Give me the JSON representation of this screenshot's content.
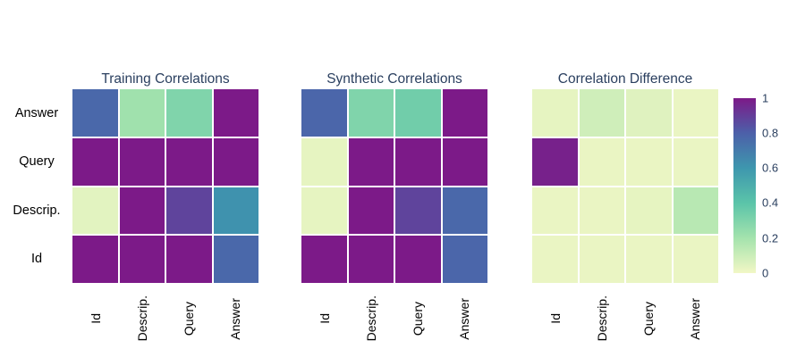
{
  "styles": {
    "background": "#ffffff",
    "title_color": "#2a3f5f",
    "axis_label_color": "#000000",
    "tick_label_color": "#2a3f5f",
    "cell_gap_color": "#ffffff"
  },
  "colormap": {
    "stops": [
      [
        0,
        "#f2f7c5"
      ],
      [
        0.2,
        "#a4e3ad"
      ],
      [
        0.4,
        "#5bc4a9"
      ],
      [
        0.6,
        "#3e97ae"
      ],
      [
        0.8,
        "#4c60a9"
      ],
      [
        1,
        "#7c1a88"
      ]
    ]
  },
  "colorbar": {
    "min": 0,
    "max": 1,
    "tick_labels": [
      "1",
      "0.8",
      "0.6",
      "0.4",
      "0.2",
      "0"
    ]
  },
  "chart_data": [
    {
      "type": "heatmap",
      "title": "Training Correlations",
      "x_categories": [
        "Id",
        "Descrip.",
        "Query",
        "Answer"
      ],
      "y_categories": [
        "Answer",
        "Query",
        "Descrip.",
        "Id"
      ],
      "values": [
        [
          0.77,
          0.21,
          0.3,
          1.0
        ],
        [
          1.0,
          1.0,
          1.0,
          1.0
        ],
        [
          0.04,
          1.0,
          0.88,
          0.62
        ],
        [
          1.0,
          1.0,
          1.0,
          0.77
        ]
      ],
      "zmin": 0,
      "zmax": 1,
      "show_y_labels": true
    },
    {
      "type": "heatmap",
      "title": "Synthetic Correlations",
      "x_categories": [
        "Id",
        "Descrip.",
        "Query",
        "Answer"
      ],
      "y_categories": [
        "Answer",
        "Query",
        "Descrip.",
        "Id"
      ],
      "values": [
        [
          0.78,
          0.3,
          0.34,
          1.0
        ],
        [
          0.03,
          1.0,
          1.0,
          1.0
        ],
        [
          0.03,
          1.0,
          0.88,
          0.77
        ],
        [
          1.0,
          1.0,
          1.0,
          0.78
        ]
      ],
      "zmin": 0,
      "zmax": 1,
      "show_y_labels": false
    },
    {
      "type": "heatmap",
      "title": "Correlation Difference",
      "x_categories": [
        "Id",
        "Descrip.",
        "Query",
        "Answer"
      ],
      "y_categories": [
        "Answer",
        "Query",
        "Descrip.",
        "Id"
      ],
      "values": [
        [
          0.03,
          0.09,
          0.05,
          0.02
        ],
        [
          0.98,
          0.02,
          0.02,
          0.02
        ],
        [
          0.02,
          0.02,
          0.03,
          0.15
        ],
        [
          0.02,
          0.02,
          0.02,
          0.02
        ]
      ],
      "zmin": 0,
      "zmax": 1,
      "show_y_labels": false
    }
  ]
}
